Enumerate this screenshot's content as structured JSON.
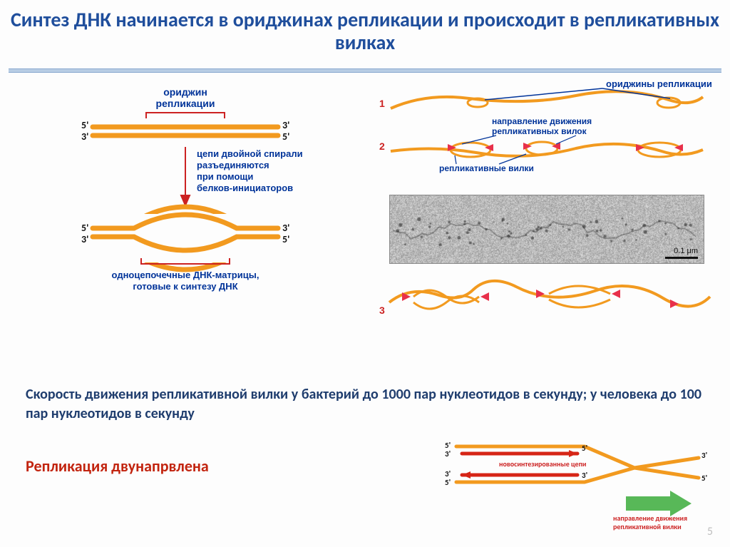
{
  "page": {
    "number": "5"
  },
  "title": "Синтез ДНК начинается в ориджинах репликации и происходит в репликативных вилках",
  "body_text": "Скорость движения репликативной вилки у бактерий до 1000 пар нуклеотидов в секунду; у человека до 100 пар нуклеотидов в секунду",
  "bidir_text": "Репликация двунапрвлена",
  "left_diagram": {
    "origin_label": "ориджин",
    "origin_label2": "репликации",
    "process_l1": "цепи двойной спирали",
    "process_l2": "разъединяются",
    "process_l3": "при помощи",
    "process_l4": "белков-инициаторов",
    "bottom_l1": "одноцепочечные ДНК-матрицы,",
    "bottom_l2": "готовые к синтезу ДНК",
    "end5": "5'",
    "end3": "3'",
    "colors": {
      "strand": "#f29a1f",
      "strand_dark": "#e07d00",
      "label": "#003399",
      "bracket": "#cc2222"
    }
  },
  "right_diagram": {
    "origins_label": "ориджины репликации",
    "direction_l1": "направление движения",
    "direction_l2": "репликативных вилок",
    "forks_label": "репликативные вилки",
    "row1": "1",
    "row2": "2",
    "row3": "3",
    "scale_label": "0.1 μm",
    "colors": {
      "strand": "#f29a1f",
      "arrow": "#e8304a",
      "label": "#003399"
    }
  },
  "fork_diagram": {
    "end5": "5'",
    "end3": "3'",
    "new_strands_l1": "новосинтезированные цепи",
    "arrow_l1": "направление движения",
    "arrow_l2": "репликативной вилки",
    "colors": {
      "template": "#f29a1f",
      "new": "#d62516",
      "box": "#4aa84a",
      "label": "#cc2222"
    }
  }
}
